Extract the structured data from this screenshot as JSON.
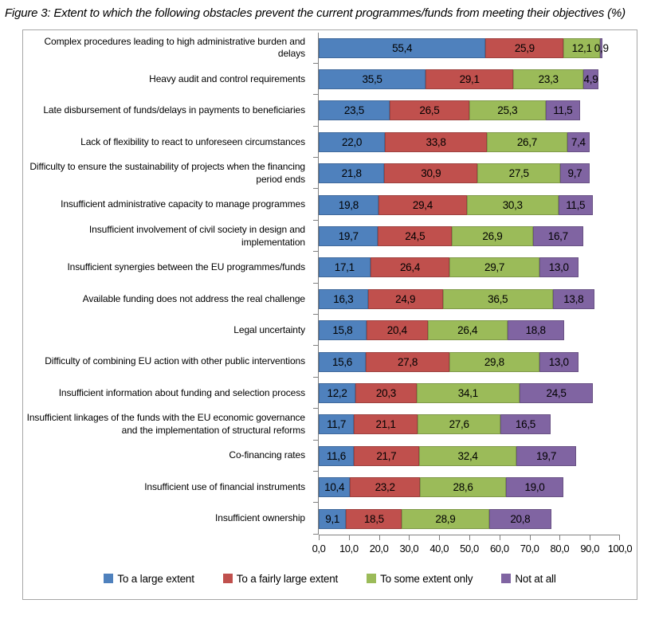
{
  "figure": {
    "title": "Figure 3: Extent to which the following obstacles prevent the current programmes/funds from meeting their objectives (%)"
  },
  "chart_data": {
    "type": "bar",
    "orientation": "horizontal",
    "stacked": true,
    "grid": false,
    "legend_position": "bottom",
    "xlim": [
      0,
      100
    ],
    "decimal_separator": ",",
    "x_tick_labels": [
      "0,0",
      "10,0",
      "20,0",
      "30,0",
      "40,0",
      "50,0",
      "60,0",
      "70,0",
      "80,0",
      "90,0",
      "100,0"
    ],
    "categories": [
      "Complex procedures leading to high administrative burden and delays",
      "Heavy audit and control requirements",
      "Late disbursement of funds/delays in payments to beneficiaries",
      "Lack of flexibility to react to unforeseen circumstances",
      "Difficulty to ensure the sustainability of projects when the financing period ends",
      "Insufficient administrative capacity to manage programmes",
      "Insufficient involvement of civil society in design and implementation",
      "Insufficient synergies between the EU programmes/funds",
      "Available funding does not address the real challenge",
      "Legal uncertainty",
      "Difficulty of combining EU action with other public interventions",
      "Insufficient information about funding and selection process",
      "Insufficient linkages of the funds with the EU economic governance and the implementation of structural reforms",
      "Co-financing rates",
      "Insufficient use of financial instruments",
      "Insufficient ownership"
    ],
    "series": [
      {
        "name": "To a large extent",
        "color": "#4F81BD",
        "values": [
          55.4,
          35.5,
          23.5,
          22.0,
          21.8,
          19.8,
          19.7,
          17.1,
          16.3,
          15.8,
          15.6,
          12.2,
          11.7,
          11.6,
          10.4,
          9.1
        ]
      },
      {
        "name": "To a fairly large extent",
        "color": "#C0504D",
        "values": [
          25.9,
          29.1,
          26.5,
          33.8,
          30.9,
          29.4,
          24.5,
          26.4,
          24.9,
          20.4,
          27.8,
          20.3,
          21.1,
          21.7,
          23.2,
          18.5
        ]
      },
      {
        "name": "To some extent only",
        "color": "#9BBB59",
        "values": [
          12.1,
          23.3,
          25.3,
          26.7,
          27.5,
          30.3,
          26.9,
          29.7,
          36.5,
          26.4,
          29.8,
          34.1,
          27.6,
          32.4,
          28.6,
          28.9
        ]
      },
      {
        "name": "Not at all",
        "color": "#8064A2",
        "values": [
          0.9,
          4.9,
          11.5,
          7.4,
          9.7,
          11.5,
          16.7,
          13.0,
          13.8,
          18.8,
          13.0,
          24.5,
          16.5,
          19.7,
          19.0,
          20.8
        ]
      }
    ]
  }
}
